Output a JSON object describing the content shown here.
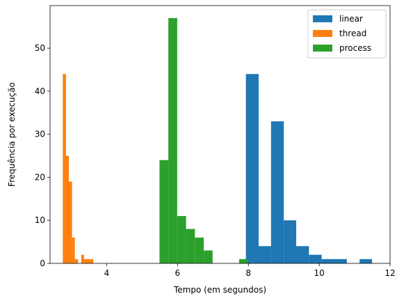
{
  "chart_data": {
    "type": "bar",
    "subtype": "histogram",
    "title": "",
    "xlabel": "Tempo (em segundos)",
    "ylabel": "Frequência por execução",
    "xlim": [
      2.4,
      12.0
    ],
    "ylim": [
      0,
      59.9
    ],
    "xticks": [
      4,
      6,
      8,
      10,
      12
    ],
    "yticks": [
      0,
      10,
      20,
      30,
      40,
      50
    ],
    "grid": false,
    "legend_position": "top-right",
    "series": [
      {
        "name": "linear",
        "color": "#1f77b4",
        "bins": [
          {
            "x0": 7.93,
            "x1": 8.29,
            "count": 44
          },
          {
            "x0": 8.29,
            "x1": 8.64,
            "count": 4
          },
          {
            "x0": 8.64,
            "x1": 9.0,
            "count": 33
          },
          {
            "x0": 9.0,
            "x1": 9.35,
            "count": 10
          },
          {
            "x0": 9.35,
            "x1": 9.71,
            "count": 4
          },
          {
            "x0": 9.71,
            "x1": 10.07,
            "count": 2
          },
          {
            "x0": 10.07,
            "x1": 10.42,
            "count": 1
          },
          {
            "x0": 10.42,
            "x1": 10.78,
            "count": 1
          },
          {
            "x0": 10.78,
            "x1": 11.14,
            "count": 0
          },
          {
            "x0": 11.14,
            "x1": 11.49,
            "count": 1
          }
        ]
      },
      {
        "name": "thread",
        "color": "#ff7f0e",
        "bins": [
          {
            "x0": 2.76,
            "x1": 2.85,
            "count": 44
          },
          {
            "x0": 2.85,
            "x1": 2.93,
            "count": 25
          },
          {
            "x0": 2.93,
            "x1": 3.02,
            "count": 19
          },
          {
            "x0": 3.02,
            "x1": 3.1,
            "count": 6
          },
          {
            "x0": 3.1,
            "x1": 3.19,
            "count": 1
          },
          {
            "x0": 3.19,
            "x1": 3.28,
            "count": 0
          },
          {
            "x0": 3.28,
            "x1": 3.36,
            "count": 2
          },
          {
            "x0": 3.36,
            "x1": 3.45,
            "count": 1
          },
          {
            "x0": 3.45,
            "x1": 3.53,
            "count": 1
          },
          {
            "x0": 3.53,
            "x1": 3.62,
            "count": 1
          }
        ]
      },
      {
        "name": "process",
        "color": "#2ca02c",
        "bins": [
          {
            "x0": 5.49,
            "x1": 5.74,
            "count": 24
          },
          {
            "x0": 5.74,
            "x1": 5.99,
            "count": 57
          },
          {
            "x0": 5.99,
            "x1": 6.24,
            "count": 11
          },
          {
            "x0": 6.24,
            "x1": 6.49,
            "count": 8
          },
          {
            "x0": 6.49,
            "x1": 6.74,
            "count": 6
          },
          {
            "x0": 6.74,
            "x1": 6.99,
            "count": 3
          },
          {
            "x0": 6.99,
            "x1": 7.24,
            "count": 0
          },
          {
            "x0": 7.24,
            "x1": 7.49,
            "count": 0
          },
          {
            "x0": 7.49,
            "x1": 7.74,
            "count": 0
          },
          {
            "x0": 7.74,
            "x1": 7.99,
            "count": 1
          }
        ]
      }
    ]
  }
}
